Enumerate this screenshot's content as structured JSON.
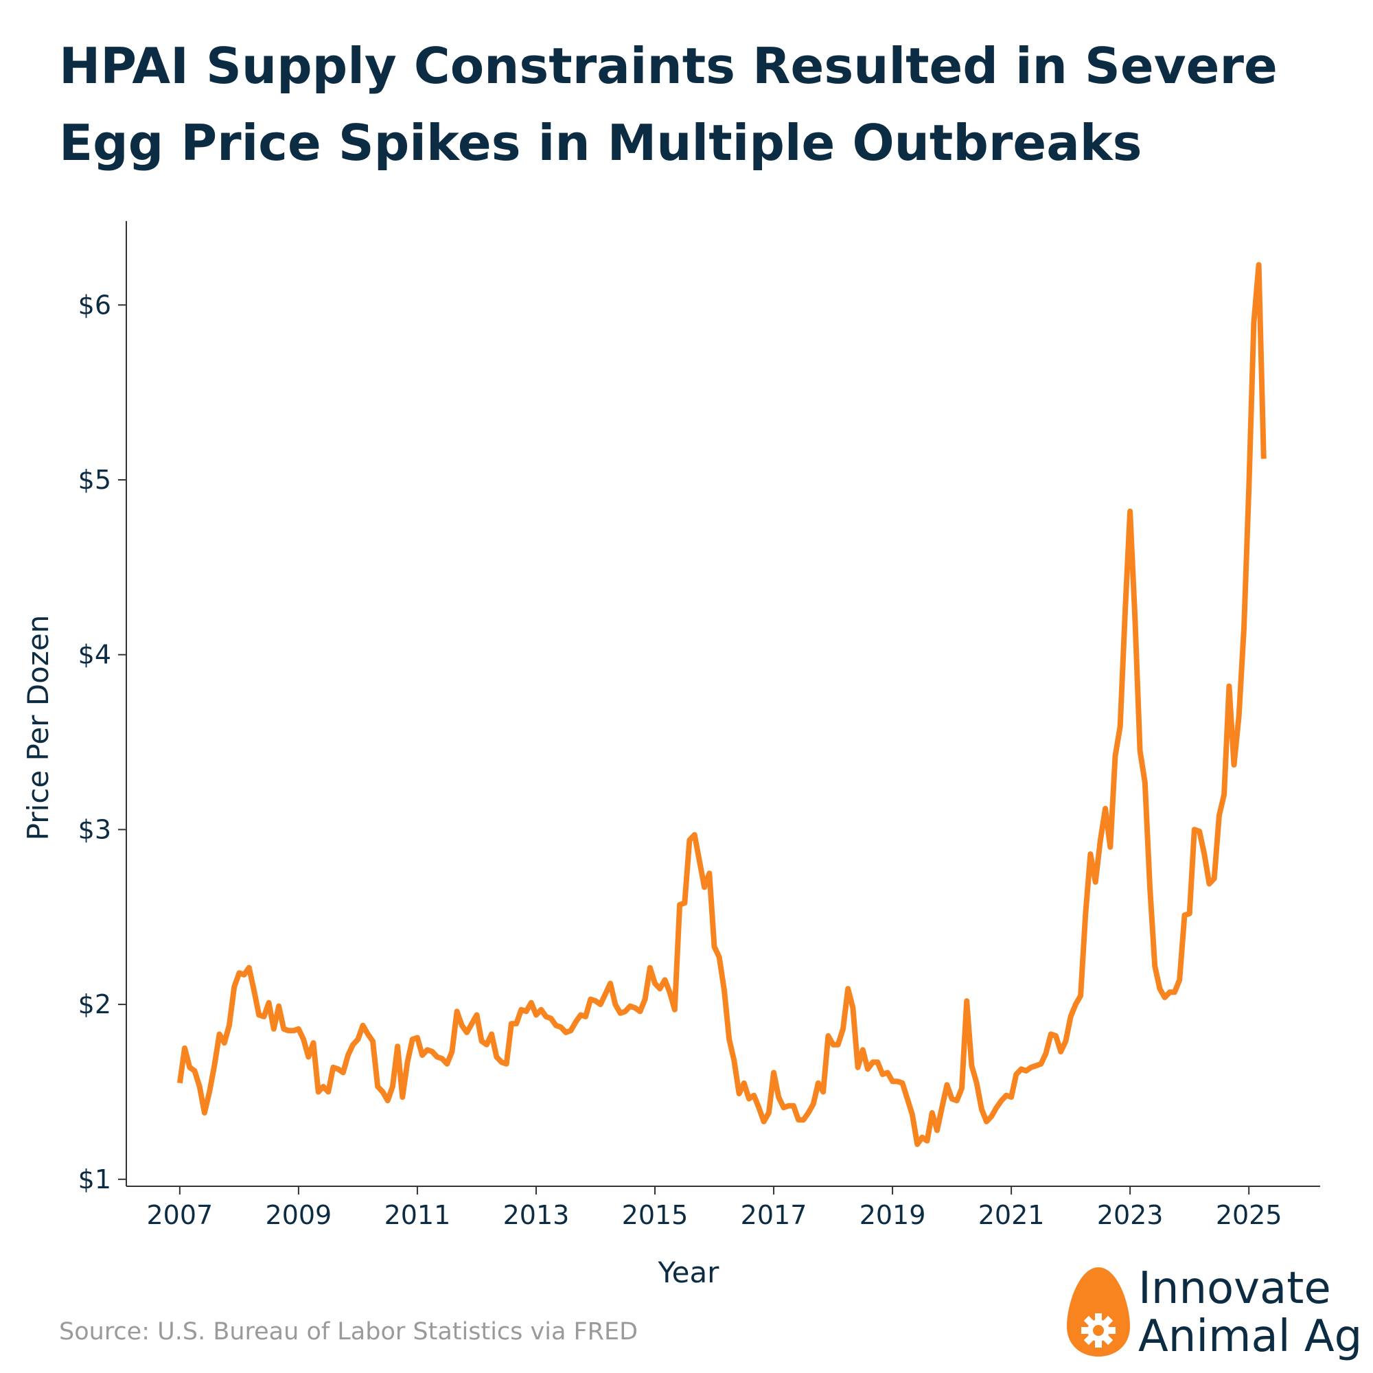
{
  "title_line1": "HPAI Supply Constraints Resulted in Severe",
  "title_line2": "Egg Price Spikes in Multiple Outbreaks",
  "source": "Source: U.S. Bureau of Labor Statistics via FRED",
  "logo": {
    "line1": "Innovate",
    "line2": "Animal Ag",
    "icon": "egg-gear-icon",
    "color": "#f7841f"
  },
  "colors": {
    "line": "#f7841f",
    "text": "#0c2c44",
    "axis": "#333333"
  },
  "chart_data": {
    "type": "line",
    "title": "HPAI Supply Constraints Resulted in Severe Egg Price Spikes in Multiple Outbreaks",
    "xlabel": "Year",
    "ylabel": "Price Per Dozen",
    "xlim": [
      2006.1,
      2026.2
    ],
    "ylim": [
      0.96,
      6.48
    ],
    "xticks": [
      2007,
      2009,
      2011,
      2013,
      2015,
      2017,
      2019,
      2021,
      2023,
      2025
    ],
    "xtick_labels": [
      "2007",
      "2009",
      "2011",
      "2013",
      "2015",
      "2017",
      "2019",
      "2021",
      "2023",
      "2025"
    ],
    "yticks": [
      1,
      2,
      3,
      4,
      5,
      6
    ],
    "ytick_labels": [
      "$1",
      "$2",
      "$3",
      "$4",
      "$5",
      "$6"
    ],
    "grid": false,
    "legend": "none",
    "series": [
      {
        "points": [
          [
            2007.0,
            1.55
          ],
          [
            2007.083,
            1.75
          ],
          [
            2007.167,
            1.64
          ],
          [
            2007.25,
            1.62
          ],
          [
            2007.333,
            1.53
          ],
          [
            2007.417,
            1.38
          ],
          [
            2007.5,
            1.5
          ],
          [
            2007.583,
            1.65
          ],
          [
            2007.667,
            1.83
          ],
          [
            2007.75,
            1.78
          ],
          [
            2007.833,
            1.88
          ],
          [
            2007.917,
            2.1
          ],
          [
            2008.0,
            2.18
          ],
          [
            2008.083,
            2.17
          ],
          [
            2008.167,
            2.21
          ],
          [
            2008.25,
            2.08
          ],
          [
            2008.333,
            1.94
          ],
          [
            2008.417,
            1.93
          ],
          [
            2008.5,
            2.01
          ],
          [
            2008.583,
            1.86
          ],
          [
            2008.667,
            1.99
          ],
          [
            2008.75,
            1.86
          ],
          [
            2008.833,
            1.85
          ],
          [
            2008.917,
            1.85
          ],
          [
            2009.0,
            1.86
          ],
          [
            2009.083,
            1.8
          ],
          [
            2009.167,
            1.7
          ],
          [
            2009.25,
            1.78
          ],
          [
            2009.333,
            1.5
          ],
          [
            2009.417,
            1.53
          ],
          [
            2009.5,
            1.5
          ],
          [
            2009.583,
            1.64
          ],
          [
            2009.667,
            1.63
          ],
          [
            2009.75,
            1.61
          ],
          [
            2009.833,
            1.71
          ],
          [
            2009.917,
            1.77
          ],
          [
            2010.0,
            1.8
          ],
          [
            2010.083,
            1.88
          ],
          [
            2010.167,
            1.83
          ],
          [
            2010.25,
            1.79
          ],
          [
            2010.333,
            1.53
          ],
          [
            2010.417,
            1.5
          ],
          [
            2010.5,
            1.45
          ],
          [
            2010.583,
            1.53
          ],
          [
            2010.667,
            1.76
          ],
          [
            2010.75,
            1.47
          ],
          [
            2010.833,
            1.67
          ],
          [
            2010.917,
            1.8
          ],
          [
            2011.0,
            1.81
          ],
          [
            2011.083,
            1.71
          ],
          [
            2011.167,
            1.74
          ],
          [
            2011.25,
            1.73
          ],
          [
            2011.333,
            1.7
          ],
          [
            2011.417,
            1.69
          ],
          [
            2011.5,
            1.66
          ],
          [
            2011.583,
            1.73
          ],
          [
            2011.667,
            1.96
          ],
          [
            2011.75,
            1.88
          ],
          [
            2011.833,
            1.84
          ],
          [
            2011.917,
            1.89
          ],
          [
            2012.0,
            1.94
          ],
          [
            2012.083,
            1.79
          ],
          [
            2012.167,
            1.77
          ],
          [
            2012.25,
            1.83
          ],
          [
            2012.333,
            1.7
          ],
          [
            2012.417,
            1.67
          ],
          [
            2012.5,
            1.66
          ],
          [
            2012.583,
            1.89
          ],
          [
            2012.667,
            1.89
          ],
          [
            2012.75,
            1.97
          ],
          [
            2012.833,
            1.96
          ],
          [
            2012.917,
            2.01
          ],
          [
            2013.0,
            1.94
          ],
          [
            2013.083,
            1.97
          ],
          [
            2013.167,
            1.93
          ],
          [
            2013.25,
            1.92
          ],
          [
            2013.333,
            1.88
          ],
          [
            2013.417,
            1.87
          ],
          [
            2013.5,
            1.84
          ],
          [
            2013.583,
            1.85
          ],
          [
            2013.667,
            1.9
          ],
          [
            2013.75,
            1.94
          ],
          [
            2013.833,
            1.93
          ],
          [
            2013.917,
            2.03
          ],
          [
            2014.0,
            2.02
          ],
          [
            2014.083,
            2.0
          ],
          [
            2014.167,
            2.06
          ],
          [
            2014.25,
            2.12
          ],
          [
            2014.333,
            2.0
          ],
          [
            2014.417,
            1.95
          ],
          [
            2014.5,
            1.96
          ],
          [
            2014.583,
            1.99
          ],
          [
            2014.667,
            1.98
          ],
          [
            2014.75,
            1.96
          ],
          [
            2014.833,
            2.03
          ],
          [
            2014.917,
            2.21
          ],
          [
            2015.0,
            2.12
          ],
          [
            2015.083,
            2.09
          ],
          [
            2015.167,
            2.14
          ],
          [
            2015.25,
            2.07
          ],
          [
            2015.333,
            1.97
          ],
          [
            2015.417,
            2.57
          ],
          [
            2015.5,
            2.58
          ],
          [
            2015.583,
            2.94
          ],
          [
            2015.667,
            2.97
          ],
          [
            2015.75,
            2.82
          ],
          [
            2015.833,
            2.67
          ],
          [
            2015.917,
            2.75
          ],
          [
            2016.0,
            2.33
          ],
          [
            2016.083,
            2.27
          ],
          [
            2016.167,
            2.08
          ],
          [
            2016.25,
            1.8
          ],
          [
            2016.333,
            1.68
          ],
          [
            2016.417,
            1.49
          ],
          [
            2016.5,
            1.55
          ],
          [
            2016.583,
            1.46
          ],
          [
            2016.667,
            1.48
          ],
          [
            2016.75,
            1.41
          ],
          [
            2016.833,
            1.33
          ],
          [
            2016.917,
            1.38
          ],
          [
            2017.0,
            1.61
          ],
          [
            2017.083,
            1.47
          ],
          [
            2017.167,
            1.41
          ],
          [
            2017.25,
            1.42
          ],
          [
            2017.333,
            1.42
          ],
          [
            2017.417,
            1.34
          ],
          [
            2017.5,
            1.34
          ],
          [
            2017.583,
            1.38
          ],
          [
            2017.667,
            1.43
          ],
          [
            2017.75,
            1.55
          ],
          [
            2017.833,
            1.5
          ],
          [
            2017.917,
            1.82
          ],
          [
            2018.0,
            1.77
          ],
          [
            2018.083,
            1.77
          ],
          [
            2018.167,
            1.86
          ],
          [
            2018.25,
            2.09
          ],
          [
            2018.333,
            1.98
          ],
          [
            2018.417,
            1.64
          ],
          [
            2018.5,
            1.74
          ],
          [
            2018.583,
            1.63
          ],
          [
            2018.667,
            1.67
          ],
          [
            2018.75,
            1.67
          ],
          [
            2018.833,
            1.6
          ],
          [
            2018.917,
            1.61
          ],
          [
            2019.0,
            1.56
          ],
          [
            2019.083,
            1.56
          ],
          [
            2019.167,
            1.55
          ],
          [
            2019.25,
            1.46
          ],
          [
            2019.333,
            1.37
          ],
          [
            2019.417,
            1.2
          ],
          [
            2019.5,
            1.24
          ],
          [
            2019.583,
            1.22
          ],
          [
            2019.667,
            1.38
          ],
          [
            2019.75,
            1.28
          ],
          [
            2019.833,
            1.41
          ],
          [
            2019.917,
            1.54
          ],
          [
            2020.0,
            1.46
          ],
          [
            2020.083,
            1.45
          ],
          [
            2020.167,
            1.52
          ],
          [
            2020.25,
            2.02
          ],
          [
            2020.333,
            1.65
          ],
          [
            2020.417,
            1.55
          ],
          [
            2020.5,
            1.4
          ],
          [
            2020.583,
            1.33
          ],
          [
            2020.667,
            1.36
          ],
          [
            2020.75,
            1.41
          ],
          [
            2020.833,
            1.45
          ],
          [
            2020.917,
            1.48
          ],
          [
            2021.0,
            1.47
          ],
          [
            2021.083,
            1.6
          ],
          [
            2021.167,
            1.63
          ],
          [
            2021.25,
            1.62
          ],
          [
            2021.333,
            1.64
          ],
          [
            2021.417,
            1.65
          ],
          [
            2021.5,
            1.66
          ],
          [
            2021.583,
            1.72
          ],
          [
            2021.667,
            1.83
          ],
          [
            2021.75,
            1.82
          ],
          [
            2021.833,
            1.73
          ],
          [
            2021.917,
            1.79
          ],
          [
            2022.0,
            1.93
          ],
          [
            2022.083,
            2.0
          ],
          [
            2022.167,
            2.05
          ],
          [
            2022.25,
            2.52
          ],
          [
            2022.333,
            2.86
          ],
          [
            2022.417,
            2.7
          ],
          [
            2022.5,
            2.94
          ],
          [
            2022.583,
            3.12
          ],
          [
            2022.667,
            2.9
          ],
          [
            2022.75,
            3.42
          ],
          [
            2022.833,
            3.59
          ],
          [
            2022.917,
            4.25
          ],
          [
            2023.0,
            4.82
          ],
          [
            2023.083,
            4.21
          ],
          [
            2023.167,
            3.45
          ],
          [
            2023.25,
            3.27
          ],
          [
            2023.333,
            2.67
          ],
          [
            2023.417,
            2.22
          ],
          [
            2023.5,
            2.09
          ],
          [
            2023.583,
            2.04
          ],
          [
            2023.667,
            2.07
          ],
          [
            2023.75,
            2.07
          ],
          [
            2023.833,
            2.14
          ],
          [
            2023.917,
            2.51
          ],
          [
            2024.0,
            2.52
          ],
          [
            2024.083,
            3.0
          ],
          [
            2024.167,
            2.99
          ],
          [
            2024.25,
            2.86
          ],
          [
            2024.333,
            2.69
          ],
          [
            2024.417,
            2.72
          ],
          [
            2024.5,
            3.08
          ],
          [
            2024.583,
            3.2
          ],
          [
            2024.667,
            3.82
          ],
          [
            2024.75,
            3.37
          ],
          [
            2024.833,
            3.65
          ],
          [
            2024.917,
            4.15
          ],
          [
            2025.0,
            4.95
          ],
          [
            2025.083,
            5.9
          ],
          [
            2025.167,
            6.23
          ],
          [
            2025.25,
            5.12
          ]
        ]
      }
    ]
  }
}
